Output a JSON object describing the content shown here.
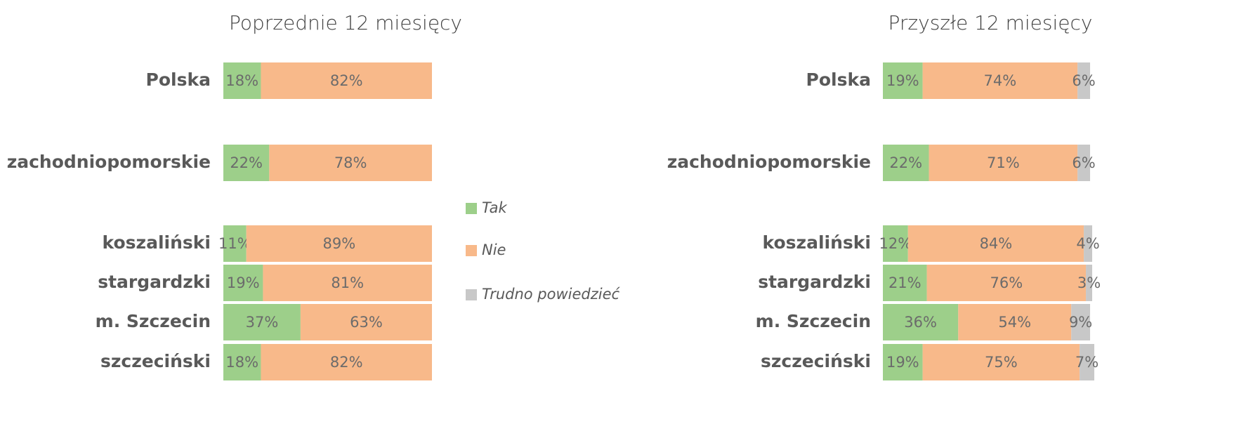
{
  "chart_data": [
    {
      "type": "bar",
      "orientation": "horizontal",
      "stacked": true,
      "title": "Poprzednie 12 miesięcy",
      "categories": [
        "Polska",
        "zachodniopomorskie",
        "koszaliński",
        "stargardzki",
        "m. Szczecin",
        "szczeciński"
      ],
      "xlim": [
        0,
        100
      ],
      "series": [
        {
          "name": "Tak",
          "color": "#9dcf8a",
          "values": [
            18,
            22,
            11,
            19,
            37,
            18
          ],
          "value_labels": [
            "18%",
            "22%",
            "11%",
            "19%",
            "37%",
            "18%"
          ]
        },
        {
          "name": "Nie",
          "color": "#f8b98a",
          "values": [
            82,
            78,
            89,
            81,
            63,
            82
          ],
          "value_labels": [
            "82%",
            "78%",
            "89%",
            "81%",
            "63%",
            "82%"
          ]
        }
      ]
    },
    {
      "type": "bar",
      "orientation": "horizontal",
      "stacked": true,
      "title": "Przyszłe 12 miesięcy",
      "categories": [
        "Polska",
        "zachodniopomorskie",
        "koszaliński",
        "stargardzki",
        "m. Szczecin",
        "szczeciński"
      ],
      "xlim": [
        0,
        100
      ],
      "series": [
        {
          "name": "Tak",
          "color": "#9dcf8a",
          "values": [
            19,
            22,
            12,
            21,
            36,
            19
          ],
          "value_labels": [
            "19%",
            "22%",
            "12%",
            "21%",
            "36%",
            "19%"
          ]
        },
        {
          "name": "Nie",
          "color": "#f8b98a",
          "values": [
            74,
            71,
            84,
            76,
            54,
            75
          ],
          "value_labels": [
            "74%",
            "71%",
            "84%",
            "76%",
            "54%",
            "75%"
          ]
        },
        {
          "name": "Trudno powiedzieć",
          "color": "#c8c8c8",
          "values": [
            6,
            6,
            4,
            3,
            9,
            7
          ],
          "value_labels": [
            "6%",
            "6%",
            "4%",
            "3%",
            "9%",
            "7%"
          ]
        }
      ]
    }
  ]
}
